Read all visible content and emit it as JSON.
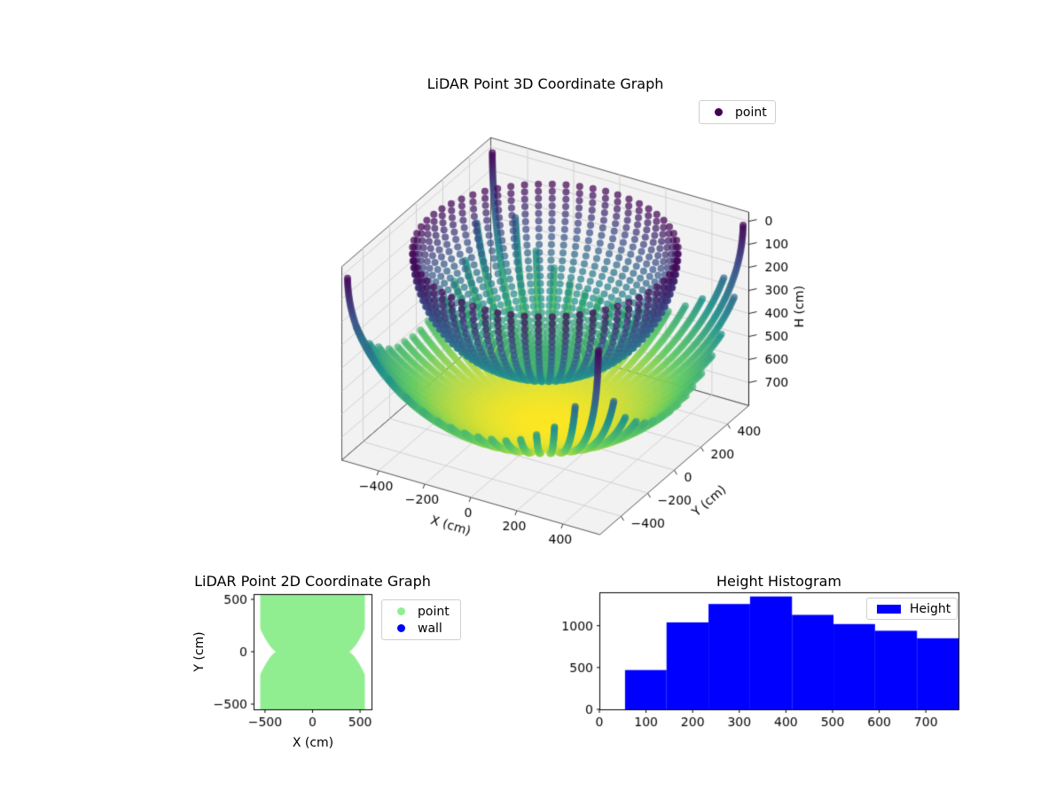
{
  "figure": {
    "background": "#ffffff"
  },
  "chart_data": [
    {
      "type": "scatter",
      "subtype": "3d-point-cloud",
      "title": "LiDAR Point 3D Coordinate Graph",
      "xlabel": "X (cm)",
      "ylabel": "Y (cm)",
      "zlabel": "H (cm)",
      "xticks": [
        -400,
        -200,
        0,
        200,
        400
      ],
      "yticks": [
        -400,
        -200,
        0,
        200,
        400
      ],
      "zticks": [
        0,
        100,
        200,
        300,
        400,
        500,
        600,
        700
      ],
      "xlim": [
        -560,
        560
      ],
      "ylim": [
        -560,
        560
      ],
      "zlim": [
        -40,
        800
      ],
      "z_axis_inverted": true,
      "view": {
        "elev": 30,
        "azim": -60
      },
      "legend": [
        {
          "label": "point",
          "color": "#440154"
        }
      ],
      "colormap": "viridis",
      "colormap_stops": [
        "#440154",
        "#3b528b",
        "#21918c",
        "#5ec962",
        "#fde725"
      ],
      "color_by": "H",
      "color_range": [
        0,
        770
      ],
      "generator": {
        "description": "two spherical LiDAR range shells centered at sensor origin, sampled along azimuth meridians, clipped to |x|<=560 and |y|<=560",
        "shell_radii_cm": [
          770,
          500
        ],
        "theta_step_deg": [
          0.8,
          3.4
        ],
        "azimuth_step_deg": 6,
        "marker_radius_px": 4,
        "marker_alpha": 0.72
      },
      "pane_color": "#f2f2f2",
      "grid_color": "#d2d2d2",
      "edge_color": "#555555"
    },
    {
      "type": "area",
      "subtype": "2d-coverage-region",
      "title": "LiDAR Point 2D Coordinate Graph",
      "xlabel": "X (cm)",
      "ylabel": "Y (cm)",
      "xticks": [
        -500,
        0,
        500
      ],
      "yticks": [
        500,
        0,
        -500
      ],
      "xlim": [
        -620,
        620
      ],
      "ylim": [
        -550,
        550
      ],
      "region": {
        "shape": "square with concave notches at mid left and mid right edges",
        "half_size": 550,
        "notch_tip_x": 385,
        "notch_half_height": 235,
        "notch_ctrl": [
          462,
          42
        ],
        "color": "#90EE90"
      },
      "legend": [
        {
          "label": "point",
          "color": "#90EE90"
        },
        {
          "label": "wall",
          "color": "#0000FF"
        }
      ]
    },
    {
      "type": "bar",
      "subtype": "histogram",
      "title": "Height Histogram",
      "bin_edges": [
        55,
        144,
        234,
        323,
        413,
        502,
        591,
        681,
        770
      ],
      "counts": [
        470,
        1040,
        1260,
        1350,
        1130,
        1020,
        940,
        850
      ],
      "bar_color": "#0000FF",
      "xticks": [
        0,
        100,
        200,
        300,
        400,
        500,
        600,
        700
      ],
      "yticks": [
        0,
        500,
        1000
      ],
      "xlim": [
        0,
        770
      ],
      "ylim": [
        0,
        1400
      ],
      "legend": [
        {
          "label": "Height",
          "color": "#0000FF"
        }
      ]
    }
  ]
}
